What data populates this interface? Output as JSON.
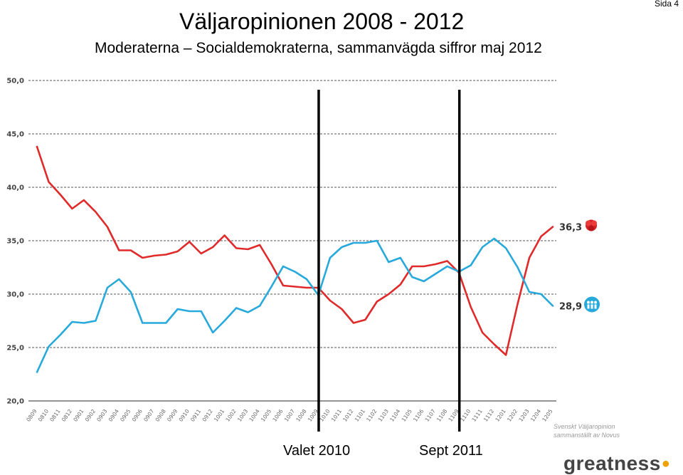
{
  "page": {
    "title": "Väljaropinionen 2008 - 2012",
    "subtitle": "Moderaterna – Socialdemokraterna, sammanvägda siffror maj 2012",
    "page_number": "Sida 4",
    "source_line1": "Svenskt Väljaropinion",
    "source_line2": "sammanställt av Novus",
    "logo_text": "greatness",
    "colors": {
      "red": "#e02a2a",
      "blue": "#27a9dc",
      "grid": "#555555",
      "marker": "#000000"
    },
    "icons": {
      "red": "rose-icon",
      "blue": "moderaterna-icon"
    }
  },
  "chart_data": {
    "type": "line",
    "title": "",
    "xlabel": "",
    "ylabel": "",
    "ylim": [
      20,
      50
    ],
    "yticks": [
      "20,0",
      "25,0",
      "30,0",
      "35,0",
      "40,0",
      "45,0",
      "50,0"
    ],
    "grid": true,
    "categories": [
      "0809",
      "0810",
      "0811",
      "0812",
      "0901",
      "0902",
      "0903",
      "0904",
      "0905",
      "0906",
      "0907",
      "0908",
      "0909",
      "0910",
      "0911",
      "0912",
      "1001",
      "1002",
      "1003",
      "1004",
      "1005",
      "1006",
      "1007",
      "1008",
      "1009",
      "1010",
      "1011",
      "1012",
      "1101",
      "1102",
      "1103",
      "1104",
      "1105",
      "1106",
      "1107",
      "1108",
      "1109",
      "1110",
      "1111",
      "1112",
      "1201",
      "1202",
      "1203",
      "1204",
      "1205"
    ],
    "series": [
      {
        "color": "#e02a2a",
        "end_label": "36,3",
        "values": [
          43.8,
          40.5,
          39.3,
          38.0,
          38.8,
          37.7,
          36.3,
          34.1,
          34.1,
          33.4,
          33.6,
          33.7,
          34.0,
          34.9,
          33.8,
          34.4,
          35.5,
          34.3,
          34.2,
          34.6,
          32.8,
          30.8,
          30.7,
          30.6,
          30.6,
          29.4,
          28.6,
          27.3,
          27.6,
          29.3,
          30.0,
          30.9,
          32.6,
          32.6,
          32.8,
          33.1,
          32.0,
          28.8,
          26.4,
          25.3,
          24.3,
          29.1,
          33.4,
          35.4,
          36.3
        ]
      },
      {
        "color": "#27a9dc",
        "end_label": "28,9",
        "values": [
          22.7,
          25.1,
          26.2,
          27.4,
          27.3,
          27.5,
          30.6,
          31.4,
          30.2,
          27.3,
          27.3,
          27.3,
          28.6,
          28.4,
          28.4,
          26.4,
          27.5,
          28.7,
          28.3,
          28.9,
          30.7,
          32.6,
          32.1,
          31.4,
          29.9,
          33.4,
          34.4,
          34.8,
          34.8,
          35.0,
          33.0,
          33.4,
          31.6,
          31.2,
          31.9,
          32.6,
          32.1,
          32.7,
          34.4,
          35.2,
          34.3,
          32.5,
          30.2,
          30.0,
          28.9
        ]
      }
    ],
    "markers": [
      {
        "label": "Valet 2010",
        "category": "1009"
      },
      {
        "label": "Sept 2011",
        "category": "1109"
      }
    ]
  }
}
